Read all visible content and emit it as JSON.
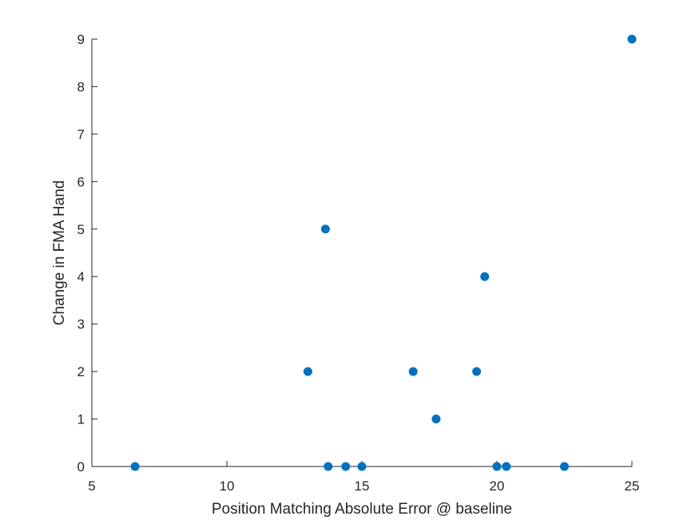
{
  "chart_data": {
    "type": "scatter",
    "title": "",
    "xlabel": "Position Matching Absolute Error @ baseline",
    "ylabel": "Change in FMA Hand",
    "xlim": [
      5,
      25
    ],
    "ylim": [
      0,
      9
    ],
    "xticks": [
      5,
      10,
      15,
      20,
      25
    ],
    "yticks": [
      0,
      1,
      2,
      3,
      4,
      5,
      6,
      7,
      8,
      9
    ],
    "grid": false,
    "legend": null,
    "marker_color": "#0072BD",
    "points": [
      {
        "x": 6.6,
        "y": 0
      },
      {
        "x": 13.0,
        "y": 2
      },
      {
        "x": 13.65,
        "y": 5
      },
      {
        "x": 13.75,
        "y": 0
      },
      {
        "x": 14.4,
        "y": 0
      },
      {
        "x": 15.0,
        "y": 0
      },
      {
        "x": 16.9,
        "y": 2
      },
      {
        "x": 17.75,
        "y": 1
      },
      {
        "x": 19.25,
        "y": 2
      },
      {
        "x": 19.55,
        "y": 4
      },
      {
        "x": 20.0,
        "y": 0
      },
      {
        "x": 20.35,
        "y": 0
      },
      {
        "x": 22.5,
        "y": 0
      },
      {
        "x": 25.0,
        "y": 9
      }
    ]
  }
}
